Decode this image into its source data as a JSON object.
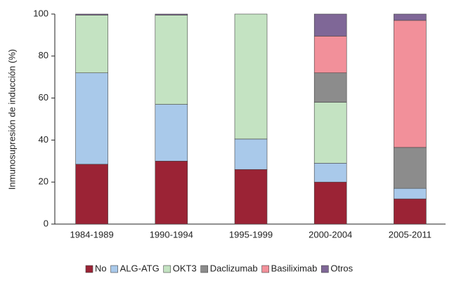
{
  "chart_data": {
    "type": "stacked_bar",
    "y_label": "Inmunosupresión de inducción (%)",
    "categories": [
      "1984-1989",
      "1990-1994",
      "1995-1999",
      "2000-2004",
      "2005-2011"
    ],
    "series": [
      {
        "name": "No",
        "color": "#9b2335",
        "values": [
          28.5,
          30,
          26,
          20,
          12
        ]
      },
      {
        "name": "ALG-ATG",
        "color": "#a9c9ea",
        "values": [
          43.5,
          27,
          14.5,
          9,
          5
        ]
      },
      {
        "name": "OKT3",
        "color": "#c4e3c2",
        "values": [
          27.5,
          42.5,
          59.5,
          29,
          0
        ]
      },
      {
        "name": "Daclizumab",
        "color": "#8c8c8c",
        "values": [
          0,
          0,
          0,
          14,
          19.5
        ]
      },
      {
        "name": "Basiliximab",
        "color": "#f2909a",
        "values": [
          0,
          0,
          0,
          17.5,
          60.5
        ]
      },
      {
        "name": "Otros",
        "color": "#7f6797",
        "values": [
          0.5,
          0.5,
          0,
          10.5,
          3
        ]
      }
    ],
    "ylim": [
      0,
      100
    ],
    "yticks": [
      0,
      20,
      40,
      60,
      80,
      100
    ]
  }
}
